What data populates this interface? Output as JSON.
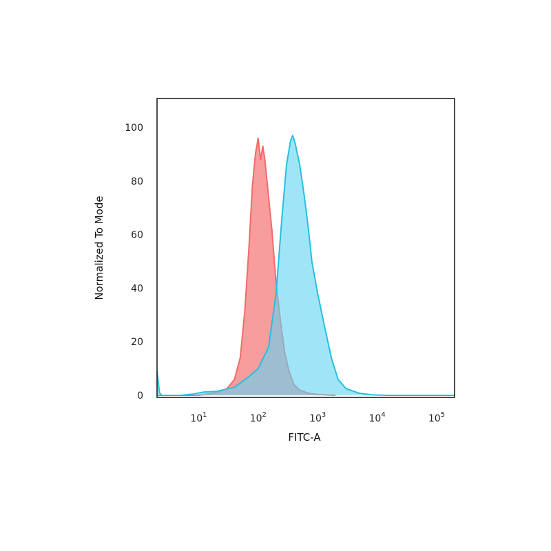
{
  "chart_data": {
    "type": "area",
    "title": "",
    "xlabel": "FITC-A",
    "ylabel": "Normalized To Mode",
    "x_scale": "log",
    "xlim": [
      2,
      200000
    ],
    "ylim": [
      0,
      100
    ],
    "grid": false,
    "legend": "none",
    "x_ticks": [
      {
        "value": 10,
        "base": "10",
        "exp": "1"
      },
      {
        "value": 100,
        "base": "10",
        "exp": "2"
      },
      {
        "value": 1000,
        "base": "10",
        "exp": "3"
      },
      {
        "value": 10000,
        "base": "10",
        "exp": "4"
      },
      {
        "value": 100000,
        "base": "10",
        "exp": "5"
      }
    ],
    "y_ticks": [
      {
        "value": 0,
        "label": "0"
      },
      {
        "value": 20,
        "label": "20"
      },
      {
        "value": 40,
        "label": "40"
      },
      {
        "value": 60,
        "label": "60"
      },
      {
        "value": 80,
        "label": "80"
      },
      {
        "value": 100,
        "label": "100"
      }
    ],
    "series": [
      {
        "color": "#f26b6b",
        "fill_color": "#f78c8c",
        "points": [
          [
            2,
            0
          ],
          [
            10,
            0
          ],
          [
            20,
            1
          ],
          [
            30,
            2.5
          ],
          [
            40,
            6
          ],
          [
            50,
            14
          ],
          [
            60,
            32
          ],
          [
            70,
            55
          ],
          [
            80,
            78
          ],
          [
            90,
            90
          ],
          [
            100,
            96
          ],
          [
            110,
            88
          ],
          [
            120,
            93
          ],
          [
            130,
            88
          ],
          [
            150,
            74
          ],
          [
            170,
            62
          ],
          [
            200,
            42
          ],
          [
            240,
            27
          ],
          [
            280,
            16
          ],
          [
            330,
            9
          ],
          [
            400,
            4
          ],
          [
            500,
            2
          ],
          [
            700,
            0.8
          ],
          [
            1000,
            0.3
          ],
          [
            2000,
            0
          ]
        ]
      },
      {
        "color": "#26bfe0",
        "fill_color": "#5fd3f2",
        "points": [
          [
            2,
            9
          ],
          [
            2.2,
            1
          ],
          [
            2.4,
            0
          ],
          [
            5,
            0
          ],
          [
            8,
            0.5
          ],
          [
            12,
            1.2
          ],
          [
            20,
            1.5
          ],
          [
            40,
            3
          ],
          [
            70,
            7
          ],
          [
            100,
            10
          ],
          [
            150,
            18
          ],
          [
            200,
            38
          ],
          [
            250,
            66
          ],
          [
            300,
            86
          ],
          [
            350,
            95
          ],
          [
            380,
            97
          ],
          [
            420,
            94
          ],
          [
            500,
            86
          ],
          [
            600,
            74
          ],
          [
            700,
            62
          ],
          [
            800,
            50
          ],
          [
            1000,
            38
          ],
          [
            1300,
            26
          ],
          [
            1700,
            14
          ],
          [
            2200,
            6
          ],
          [
            3000,
            2.5
          ],
          [
            5000,
            0.8
          ],
          [
            8000,
            0.2
          ],
          [
            15000,
            0
          ],
          [
            200000,
            0
          ]
        ]
      }
    ]
  }
}
